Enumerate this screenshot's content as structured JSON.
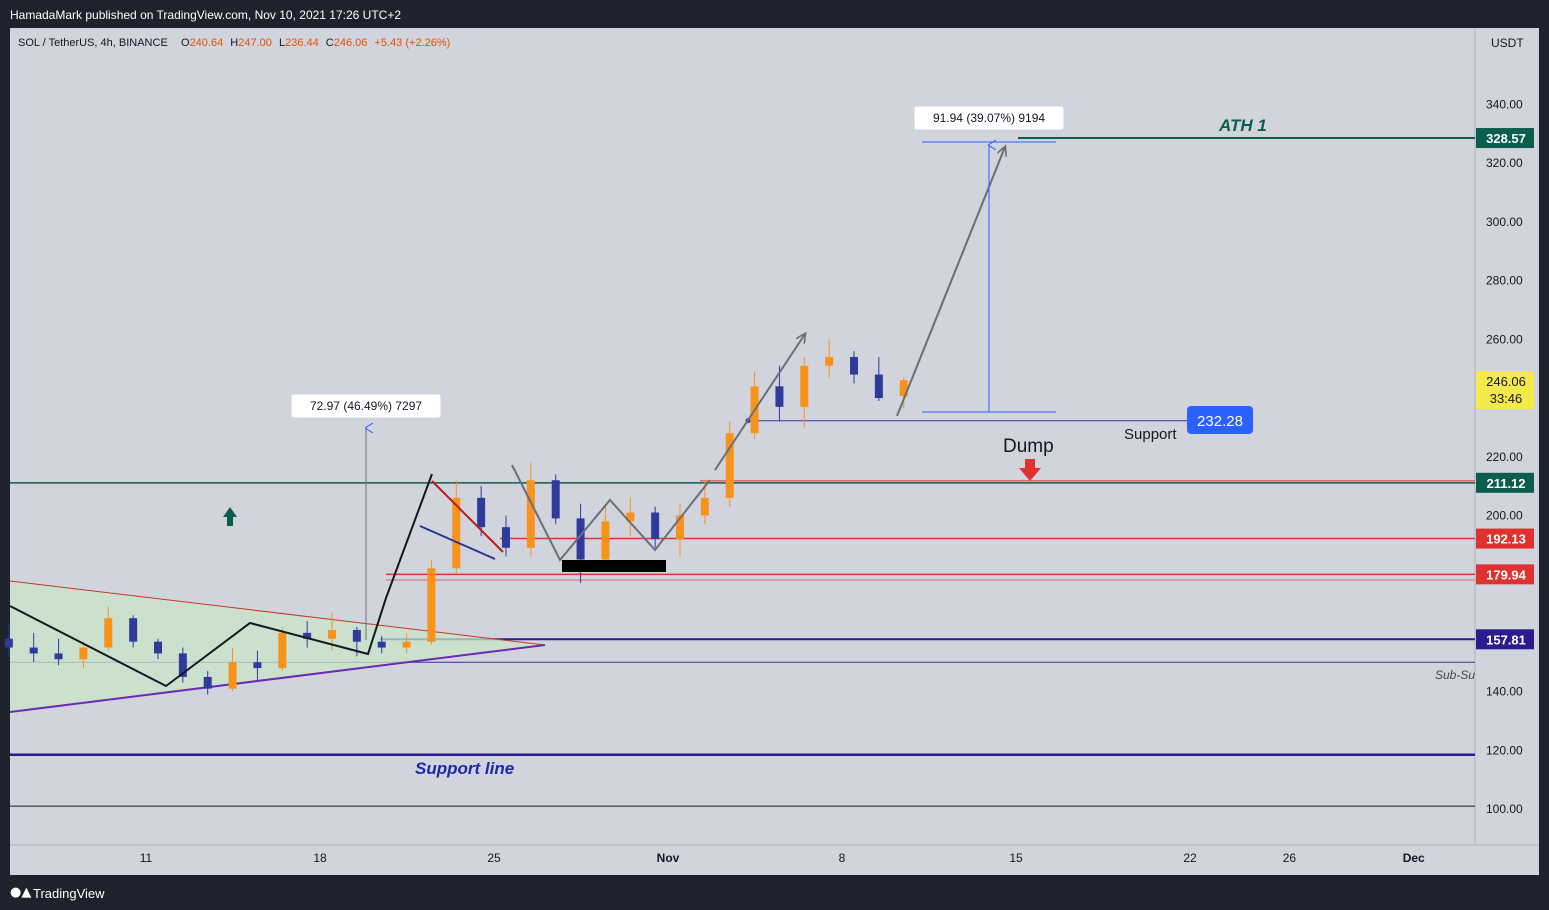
{
  "header": {
    "published": "HamadaMark published on TradingView.com, Nov 10, 2021 17:26 UTC+2"
  },
  "footer": {
    "logo_icon": "tradingview-logo-icon",
    "brand": "TradingView"
  },
  "chart_data": {
    "type": "candlestick",
    "symbol": "SOL / TetherUS, 4h, BINANCE",
    "ohlc": {
      "open_label": "O",
      "open": "240.64",
      "high_label": "H",
      "high": "247.00",
      "low_label": "L",
      "low": "236.44",
      "close_label": "C",
      "close": "246.06",
      "change": "+5.43 (+2.26%)"
    },
    "currency": "USDT",
    "ylim": [
      92,
      355
    ],
    "y_ticks": [
      "340.00",
      "320.00",
      "300.00",
      "280.00",
      "260.00",
      "220.00",
      "200.00",
      "140.00",
      "120.00",
      "100.00"
    ],
    "x_ticks": [
      {
        "label": "11",
        "day": "2021-10-11"
      },
      {
        "label": "18",
        "day": "2021-10-18"
      },
      {
        "label": "25",
        "day": "2021-10-25"
      },
      {
        "label": "Nov",
        "day": "2021-11-01"
      },
      {
        "label": "8",
        "day": "2021-11-08"
      },
      {
        "label": "15",
        "day": "2021-11-15"
      },
      {
        "label": "22",
        "day": "2021-11-22"
      },
      {
        "label": "26",
        "day": "2021-11-26"
      },
      {
        "label": "Dec",
        "day": "2021-12-01"
      }
    ],
    "current_price": {
      "value": "246.06",
      "countdown": "33:46"
    },
    "price_levels": [
      {
        "label": "328.57",
        "value": 328.57,
        "color": "#0b5d4d",
        "name": "ATH 1"
      },
      {
        "label": "211.12",
        "value": 211.12,
        "color": "#0b5d4d",
        "name": ""
      },
      {
        "label": "192.13",
        "value": 192.13,
        "color": "#e03131",
        "name": ""
      },
      {
        "label": "179.94",
        "value": 179.94,
        "color": "#e03131",
        "name": ""
      },
      {
        "label": "157.81",
        "value": 157.81,
        "color": "#2c1b8f",
        "name": ""
      }
    ],
    "annotations": {
      "ath": "ATH 1",
      "support_line": "Support line",
      "support": "Support",
      "support_value": "232.28",
      "dump": "Dump",
      "subsupport": "Sub-Su",
      "measure1": "72.97 (46.49%) 7297",
      "measure2": "91.94 (39.07%) 9194"
    },
    "colors": {
      "up": "#f7931a",
      "down": "#2f3a9a",
      "bg": "#d1d4dc",
      "ath": "#0b5d4d",
      "red": "#e03131",
      "navy": "#2c1b8f",
      "blue_label": "#2962ff",
      "triangle_fill": "#c8e6c9"
    },
    "candles": [
      {
        "day": "2021-10-05",
        "open": 158,
        "high": 163,
        "low": 152,
        "close": 155
      },
      {
        "day": "2021-10-06",
        "open": 155,
        "high": 160,
        "low": 150,
        "close": 153
      },
      {
        "day": "2021-10-07",
        "open": 153,
        "high": 158,
        "low": 149,
        "close": 151
      },
      {
        "day": "2021-10-08",
        "open": 151,
        "high": 157,
        "low": 148,
        "close": 155
      },
      {
        "day": "2021-10-09",
        "open": 155,
        "high": 169,
        "low": 154,
        "close": 165
      },
      {
        "day": "2021-10-10",
        "open": 165,
        "high": 166,
        "low": 155,
        "close": 157
      },
      {
        "day": "2021-10-11",
        "open": 157,
        "high": 158,
        "low": 151,
        "close": 153
      },
      {
        "day": "2021-10-12",
        "open": 153,
        "high": 155,
        "low": 143,
        "close": 145
      },
      {
        "day": "2021-10-13",
        "open": 145,
        "high": 147,
        "low": 139,
        "close": 141
      },
      {
        "day": "2021-10-14",
        "open": 141,
        "high": 155,
        "low": 140,
        "close": 150
      },
      {
        "day": "2021-10-15",
        "open": 150,
        "high": 154,
        "low": 144,
        "close": 148
      },
      {
        "day": "2021-10-16",
        "open": 148,
        "high": 162,
        "low": 147,
        "close": 160
      },
      {
        "day": "2021-10-17",
        "open": 160,
        "high": 164,
        "low": 155,
        "close": 158
      },
      {
        "day": "2021-10-18",
        "open": 158,
        "high": 167,
        "low": 154,
        "close": 161
      },
      {
        "day": "2021-10-19",
        "open": 161,
        "high": 162,
        "low": 152,
        "close": 157
      },
      {
        "day": "2021-10-20",
        "open": 157,
        "high": 159,
        "low": 153,
        "close": 155
      },
      {
        "day": "2021-10-21",
        "open": 155,
        "high": 160,
        "low": 153,
        "close": 157
      },
      {
        "day": "2021-10-22",
        "open": 157,
        "high": 185,
        "low": 156,
        "close": 182
      },
      {
        "day": "2021-10-23",
        "open": 182,
        "high": 212,
        "low": 180,
        "close": 206
      },
      {
        "day": "2021-10-24",
        "open": 206,
        "high": 210,
        "low": 193,
        "close": 196
      },
      {
        "day": "2021-10-25",
        "open": 196,
        "high": 200,
        "low": 186,
        "close": 189
      },
      {
        "day": "2021-10-26",
        "open": 189,
        "high": 218,
        "low": 186,
        "close": 212
      },
      {
        "day": "2021-10-27",
        "open": 212,
        "high": 214,
        "low": 197,
        "close": 199
      },
      {
        "day": "2021-10-28",
        "open": 199,
        "high": 204,
        "low": 177,
        "close": 185
      },
      {
        "day": "2021-10-29",
        "open": 185,
        "high": 204,
        "low": 182,
        "close": 198
      },
      {
        "day": "2021-10-30",
        "open": 198,
        "high": 206,
        "low": 193,
        "close": 201
      },
      {
        "day": "2021-10-31",
        "open": 201,
        "high": 203,
        "low": 189,
        "close": 192
      },
      {
        "day": "2021-11-01",
        "open": 192,
        "high": 204,
        "low": 186,
        "close": 200
      },
      {
        "day": "2021-11-02",
        "open": 200,
        "high": 212,
        "low": 197,
        "close": 206
      },
      {
        "day": "2021-11-03",
        "open": 206,
        "high": 232,
        "low": 203,
        "close": 228
      },
      {
        "day": "2021-11-04",
        "open": 228,
        "high": 249,
        "low": 226,
        "close": 244
      },
      {
        "day": "2021-11-05",
        "open": 244,
        "high": 251,
        "low": 232,
        "close": 237
      },
      {
        "day": "2021-11-06",
        "open": 237,
        "high": 254,
        "low": 230,
        "close": 251
      },
      {
        "day": "2021-11-07",
        "open": 251,
        "high": 260,
        "low": 247,
        "close": 254
      },
      {
        "day": "2021-11-08",
        "open": 254,
        "high": 256,
        "low": 245,
        "close": 248
      },
      {
        "day": "2021-11-09",
        "open": 248,
        "high": 254,
        "low": 239,
        "close": 240
      },
      {
        "day": "2021-11-10",
        "open": 240.64,
        "high": 247,
        "low": 236.44,
        "close": 246.06
      }
    ]
  }
}
